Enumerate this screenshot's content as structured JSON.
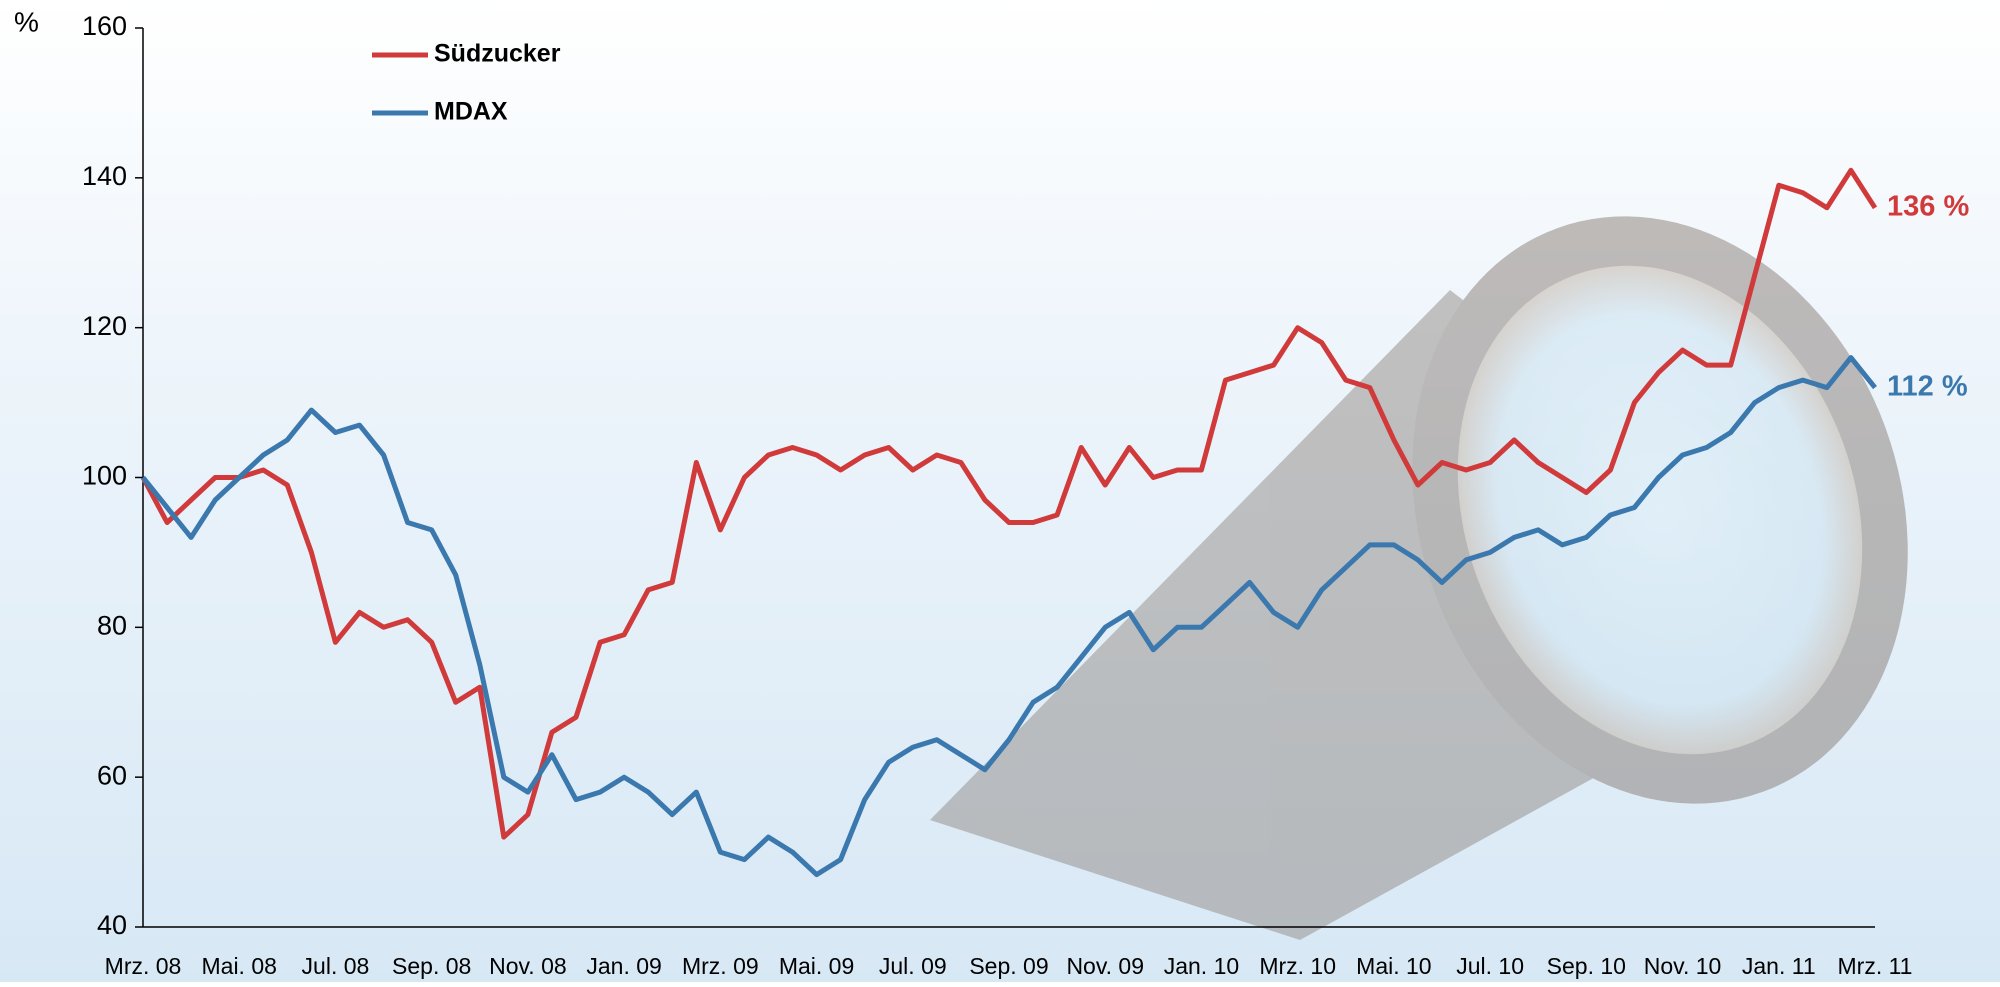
{
  "chart_data": {
    "type": "line",
    "y_label": "%",
    "categories": [
      "Mrz. 08",
      null,
      null,
      null,
      "Mai. 08",
      null,
      null,
      null,
      "Jul. 08",
      null,
      null,
      null,
      "Sep. 08",
      null,
      null,
      null,
      "Nov. 08",
      null,
      null,
      null,
      "Jan. 09",
      null,
      null,
      null,
      "Mrz. 09",
      null,
      null,
      null,
      "Mai. 09",
      null,
      null,
      null,
      "Jul. 09",
      null,
      null,
      null,
      "Sep. 09",
      null,
      null,
      null,
      "Nov. 09",
      null,
      null,
      null,
      "Jan. 10",
      null,
      null,
      null,
      "Mrz. 10",
      null,
      null,
      null,
      "Mai. 10",
      null,
      null,
      null,
      "Jul. 10",
      null,
      null,
      null,
      "Sep. 10",
      null,
      null,
      null,
      "Nov. 10",
      null,
      null,
      null,
      "Jan. 11",
      null,
      null,
      null,
      "Mrz. 11"
    ],
    "series": [
      {
        "name": "Südzucker",
        "color": "#d03a3a",
        "end_label": "136 %",
        "values": [
          100,
          94,
          97,
          100,
          100,
          101,
          99,
          90,
          78,
          82,
          80,
          81,
          78,
          70,
          72,
          52,
          55,
          66,
          68,
          78,
          79,
          85,
          86,
          102,
          93,
          100,
          103,
          104,
          103,
          101,
          103,
          104,
          101,
          103,
          102,
          97,
          94,
          94,
          95,
          104,
          99,
          104,
          100,
          101,
          101,
          113,
          114,
          115,
          120,
          118,
          113,
          112,
          105,
          99,
          102,
          101,
          102,
          105,
          102,
          100,
          98,
          101,
          110,
          114,
          117,
          115,
          115,
          127,
          139,
          138,
          136,
          141,
          136
        ]
      },
      {
        "name": "MDAX",
        "color": "#3a78ae",
        "end_label": "112 %",
        "values": [
          100,
          96,
          92,
          97,
          100,
          103,
          105,
          109,
          106,
          107,
          103,
          94,
          93,
          87,
          75,
          60,
          58,
          63,
          57,
          58,
          60,
          58,
          55,
          58,
          50,
          49,
          52,
          50,
          47,
          49,
          57,
          62,
          64,
          65,
          63,
          61,
          65,
          70,
          72,
          76,
          80,
          82,
          77,
          80,
          80,
          83,
          86,
          82,
          80,
          85,
          88,
          91,
          91,
          89,
          86,
          89,
          90,
          92,
          93,
          91,
          92,
          95,
          96,
          100,
          103,
          104,
          106,
          110,
          112,
          113,
          112,
          116,
          112
        ]
      }
    ],
    "ylim": [
      40,
      160
    ],
    "yticks": [
      40,
      60,
      80,
      100,
      120,
      140,
      160
    ],
    "grid": false
  }
}
